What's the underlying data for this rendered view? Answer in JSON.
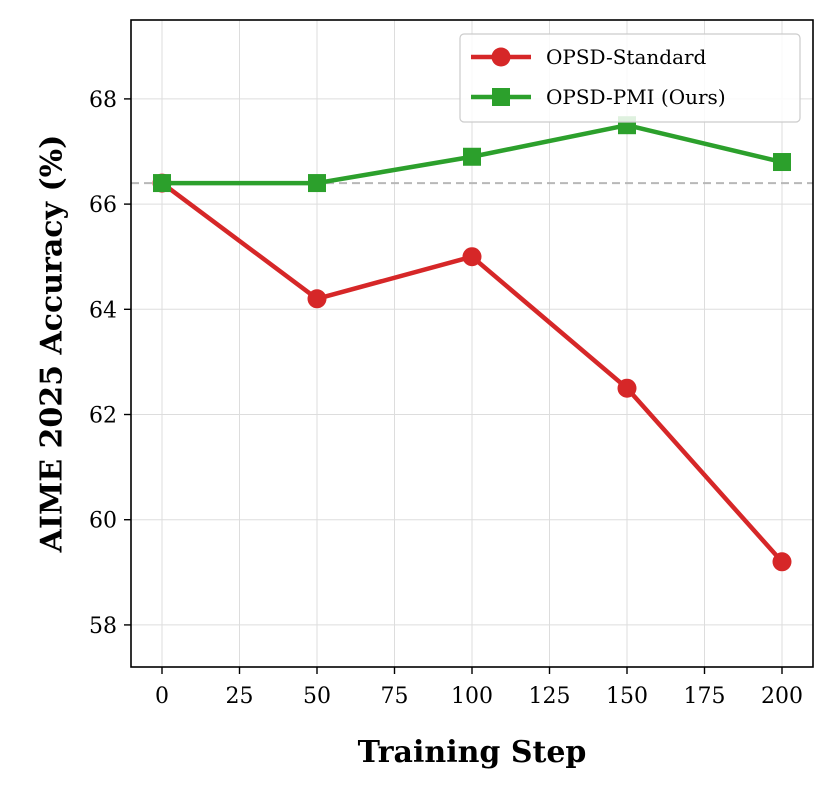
{
  "chart_data": {
    "type": "line",
    "title": "",
    "xlabel": "Training Step",
    "ylabel": "AIME 2025 Accuracy (%)",
    "xlim": [
      -10,
      210
    ],
    "ylim": [
      57.2,
      69.5
    ],
    "xticks": [
      0,
      25,
      50,
      75,
      100,
      125,
      150,
      175,
      200
    ],
    "yticks": [
      58,
      60,
      62,
      64,
      66,
      68
    ],
    "grid": true,
    "legend_position": "top-right",
    "baseline": 66.4,
    "series": [
      {
        "name": "OPSD-Standard",
        "color": "#d62728",
        "marker": "circle",
        "x": [
          0,
          50,
          100,
          150,
          200
        ],
        "y": [
          66.4,
          64.2,
          65.0,
          62.5,
          59.2
        ]
      },
      {
        "name": "OPSD-PMI (Ours)",
        "color": "#2ca02c",
        "marker": "square",
        "x": [
          0,
          50,
          100,
          150,
          200
        ],
        "y": [
          66.4,
          66.4,
          66.9,
          67.5,
          66.8
        ]
      }
    ]
  }
}
